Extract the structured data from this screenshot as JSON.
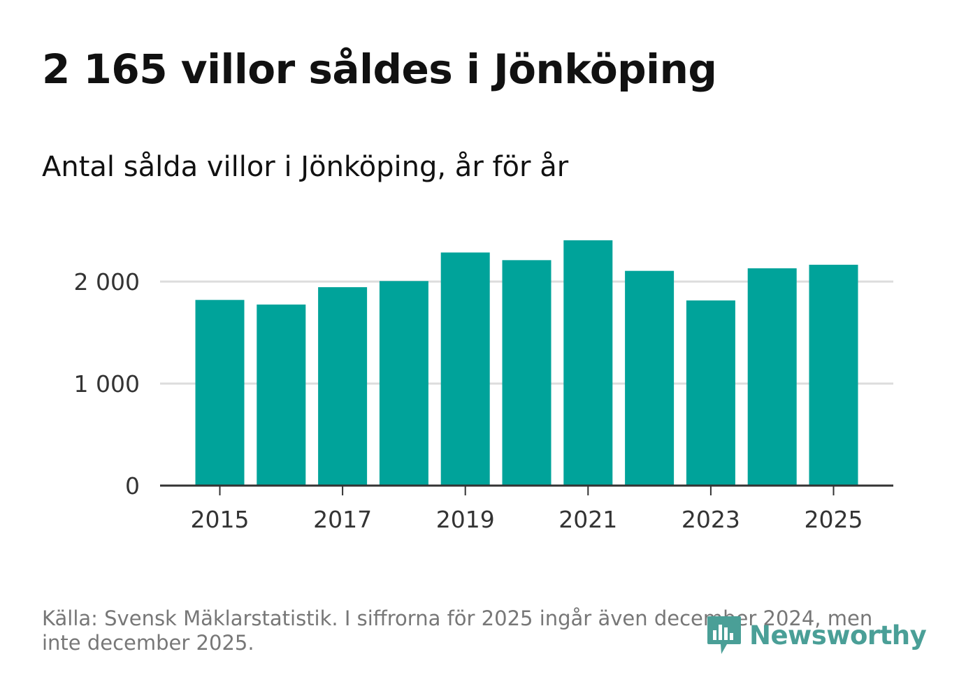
{
  "title": "2 165 villor såldes i Jönköping",
  "subtitle": "Antal sålda villor i Jönköping, år för år",
  "source": "Källa: Svensk Mäklarstatistik. I siffrorna för 2025 ingår även december 2024, men inte december 2025.",
  "logo_text": "Newsworthy",
  "colors": {
    "bar": "#00a39a",
    "grid": "#dddddd",
    "axis": "#333333",
    "logo": "#4a9f97"
  },
  "chart_data": {
    "type": "bar",
    "title": "Antal sålda villor i Jönköping, år för år",
    "xlabel": "",
    "ylabel": "",
    "categories": [
      "2015",
      "2016",
      "2017",
      "2018",
      "2019",
      "2020",
      "2021",
      "2022",
      "2023",
      "2024",
      "2025"
    ],
    "values": [
      1820,
      1775,
      1945,
      2005,
      2285,
      2210,
      2405,
      2105,
      1815,
      2130,
      2165
    ],
    "ylim": [
      0,
      2500
    ],
    "yticks": [
      0,
      1000,
      2000
    ],
    "ytick_labels": [
      "0",
      "1 000",
      "2 000"
    ],
    "xtick_labels": [
      "2015",
      "2017",
      "2019",
      "2021",
      "2023",
      "2025"
    ],
    "grid": true
  }
}
